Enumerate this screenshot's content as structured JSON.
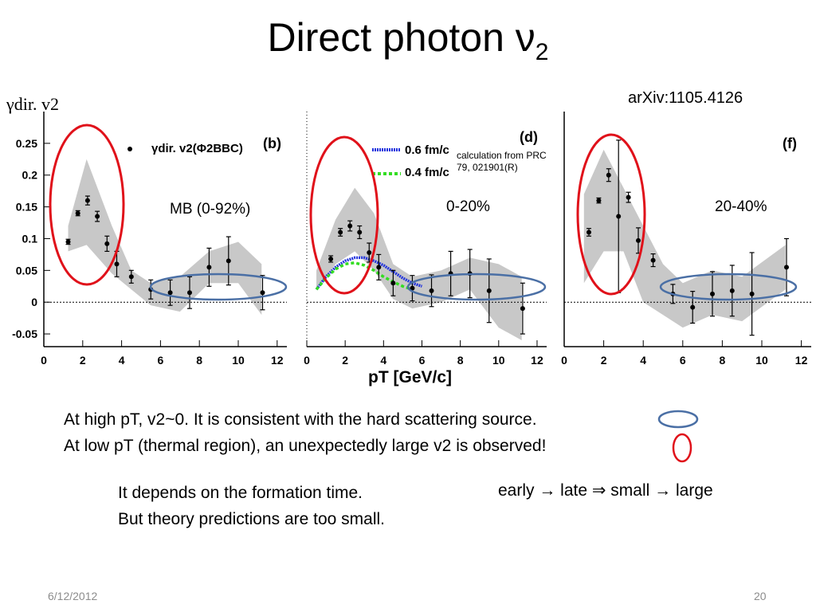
{
  "title": "Direct photon ν",
  "title_sub": "2",
  "source_ref": "arXiv:1105.4126",
  "y_axis_label": "γdir. v2",
  "x_axis_label": "pT [GeV/c]",
  "colors": {
    "high_pt_ellipse": "#4a6fa5",
    "low_pt_ellipse": "#e0111a",
    "band": "#c8c8c8",
    "calc_06": "#2233dd",
    "calc_04": "#33dd22"
  },
  "chart_data": [
    {
      "type": "scatter",
      "panel": "(b)",
      "centrality": "MB (0-92%)",
      "legend": "γdir. v2(Φ2BBC)",
      "xlim": [
        0,
        12.5
      ],
      "ylim": [
        -0.07,
        0.3
      ],
      "x_ticks": [
        0,
        2,
        4,
        6,
        8,
        10,
        12
      ],
      "y_ticks": [
        -0.05,
        0,
        0.05,
        0.1,
        0.15,
        0.2,
        0.25
      ],
      "x": [
        1.25,
        1.75,
        2.25,
        2.75,
        3.25,
        3.75,
        4.5,
        5.5,
        6.5,
        7.5,
        8.5,
        9.5,
        11.25
      ],
      "y": [
        0.095,
        0.14,
        0.16,
        0.135,
        0.092,
        0.06,
        0.04,
        0.02,
        0.015,
        0.015,
        0.055,
        0.065,
        0.015
      ],
      "yerr": [
        0.004,
        0.004,
        0.007,
        0.008,
        0.012,
        0.02,
        0.01,
        0.015,
        0.02,
        0.025,
        0.03,
        0.038,
        0.027
      ]
    },
    {
      "type": "scatter",
      "panel": "(d)",
      "centrality": "0-20%",
      "xlim": [
        0,
        12.5
      ],
      "ylim": [
        -0.07,
        0.3
      ],
      "x_ticks": [
        0,
        2,
        4,
        6,
        8,
        10,
        12
      ],
      "x": [
        1.25,
        1.75,
        2.25,
        2.75,
        3.25,
        3.75,
        4.5,
        5.5,
        6.5,
        7.5,
        8.5,
        9.5,
        11.25
      ],
      "y": [
        0.068,
        0.11,
        0.12,
        0.11,
        0.078,
        0.055,
        0.03,
        0.022,
        0.018,
        0.045,
        0.045,
        0.018,
        -0.01
      ],
      "yerr": [
        0.005,
        0.006,
        0.008,
        0.01,
        0.015,
        0.02,
        0.02,
        0.02,
        0.025,
        0.035,
        0.038,
        0.05,
        0.04
      ],
      "series": [
        {
          "name": "0.6 fm/c",
          "x": [
            0.5,
            1,
            1.5,
            2,
            2.5,
            3,
            3.5,
            4,
            4.5,
            5,
            5.5,
            6
          ],
          "y": [
            0.02,
            0.04,
            0.055,
            0.065,
            0.07,
            0.07,
            0.065,
            0.058,
            0.048,
            0.038,
            0.03,
            0.025
          ]
        },
        {
          "name": "0.4 fm/c",
          "x": [
            0.5,
            1,
            1.5,
            2,
            2.5,
            3,
            3.5,
            4,
            4.5,
            5,
            5.5
          ],
          "y": [
            0.02,
            0.038,
            0.052,
            0.06,
            0.062,
            0.058,
            0.05,
            0.04,
            0.032,
            0.025,
            0.02
          ]
        }
      ],
      "annotation": "calculation from PRC 79, 021901(R)"
    },
    {
      "type": "scatter",
      "panel": "(f)",
      "centrality": "20-40%",
      "xlim": [
        0,
        12.5
      ],
      "ylim": [
        -0.07,
        0.3
      ],
      "x_ticks": [
        0,
        2,
        4,
        6,
        8,
        10,
        12
      ],
      "x": [
        1.25,
        1.75,
        2.25,
        2.75,
        3.25,
        3.75,
        4.5,
        5.5,
        6.5,
        7.5,
        8.5,
        9.5,
        11.25
      ],
      "y": [
        0.11,
        0.16,
        0.2,
        0.135,
        0.165,
        0.097,
        0.066,
        0.013,
        -0.008,
        0.013,
        0.018,
        0.013,
        0.055
      ],
      "yerr": [
        0.006,
        0.004,
        0.01,
        0.12,
        0.008,
        0.02,
        0.01,
        0.015,
        0.025,
        0.035,
        0.04,
        0.065,
        0.045
      ]
    }
  ],
  "notes": {
    "line1": "At high pT, v2~0.  It is consistent with the hard scattering source.",
    "line2": "At low pT (thermal region), an unexpectedly large v2 is observed!",
    "formation1": "It depends on the formation time.",
    "formation2": "But theory predictions are too small.",
    "trend": "early → late ⇒ small → large"
  },
  "footer": {
    "date": "6/12/2012",
    "page": "20"
  }
}
